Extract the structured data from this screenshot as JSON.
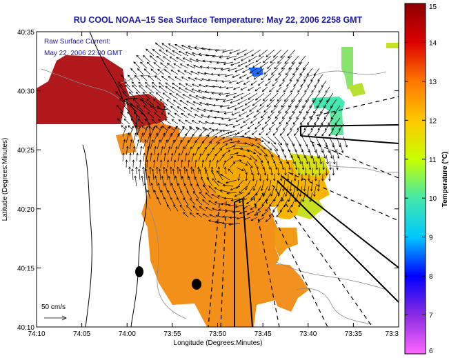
{
  "title": "RU COOL  NOAA–15  Sea Surface Temperature:  May 22, 2006 2258 GMT",
  "overlay_note_line1": "Raw Surface Current:",
  "overlay_note_line2": "May 22, 2006 22:00 GMT",
  "scale_label": "50 cm/s",
  "x_axis": {
    "label": "Longitude (Degrees:Minutes)",
    "ticks": [
      "74:10",
      "74:05",
      "74:00",
      "73:55",
      "73:50",
      "73:45",
      "73:40",
      "73:35",
      "73:3"
    ]
  },
  "y_axis": {
    "label": "Latitude (Degrees:Minutes)",
    "ticks": [
      "40:35",
      "40:30",
      "40:25",
      "40:20",
      "40:15",
      "40:10"
    ]
  },
  "colorbar": {
    "title": "Temperature (°C)",
    "ticks": [
      "15",
      "14",
      "13",
      "12",
      "11",
      "10",
      "9",
      "8",
      "7",
      "6"
    ],
    "range": [
      6,
      15
    ],
    "stops": [
      "#ff66ff",
      "#8a2be2",
      "#0000ff",
      "#00c8ff",
      "#44e8aa",
      "#c8ff00",
      "#ffc800",
      "#ff7700",
      "#dd0000",
      "#8b0000"
    ]
  },
  "colors": {
    "sst_hot": "#b0181b",
    "sst_warm": "#f07a18",
    "sst_mid": "#f5a300",
    "sst_cool": "#c8e020",
    "sst_cold": "#44e8b0"
  }
}
